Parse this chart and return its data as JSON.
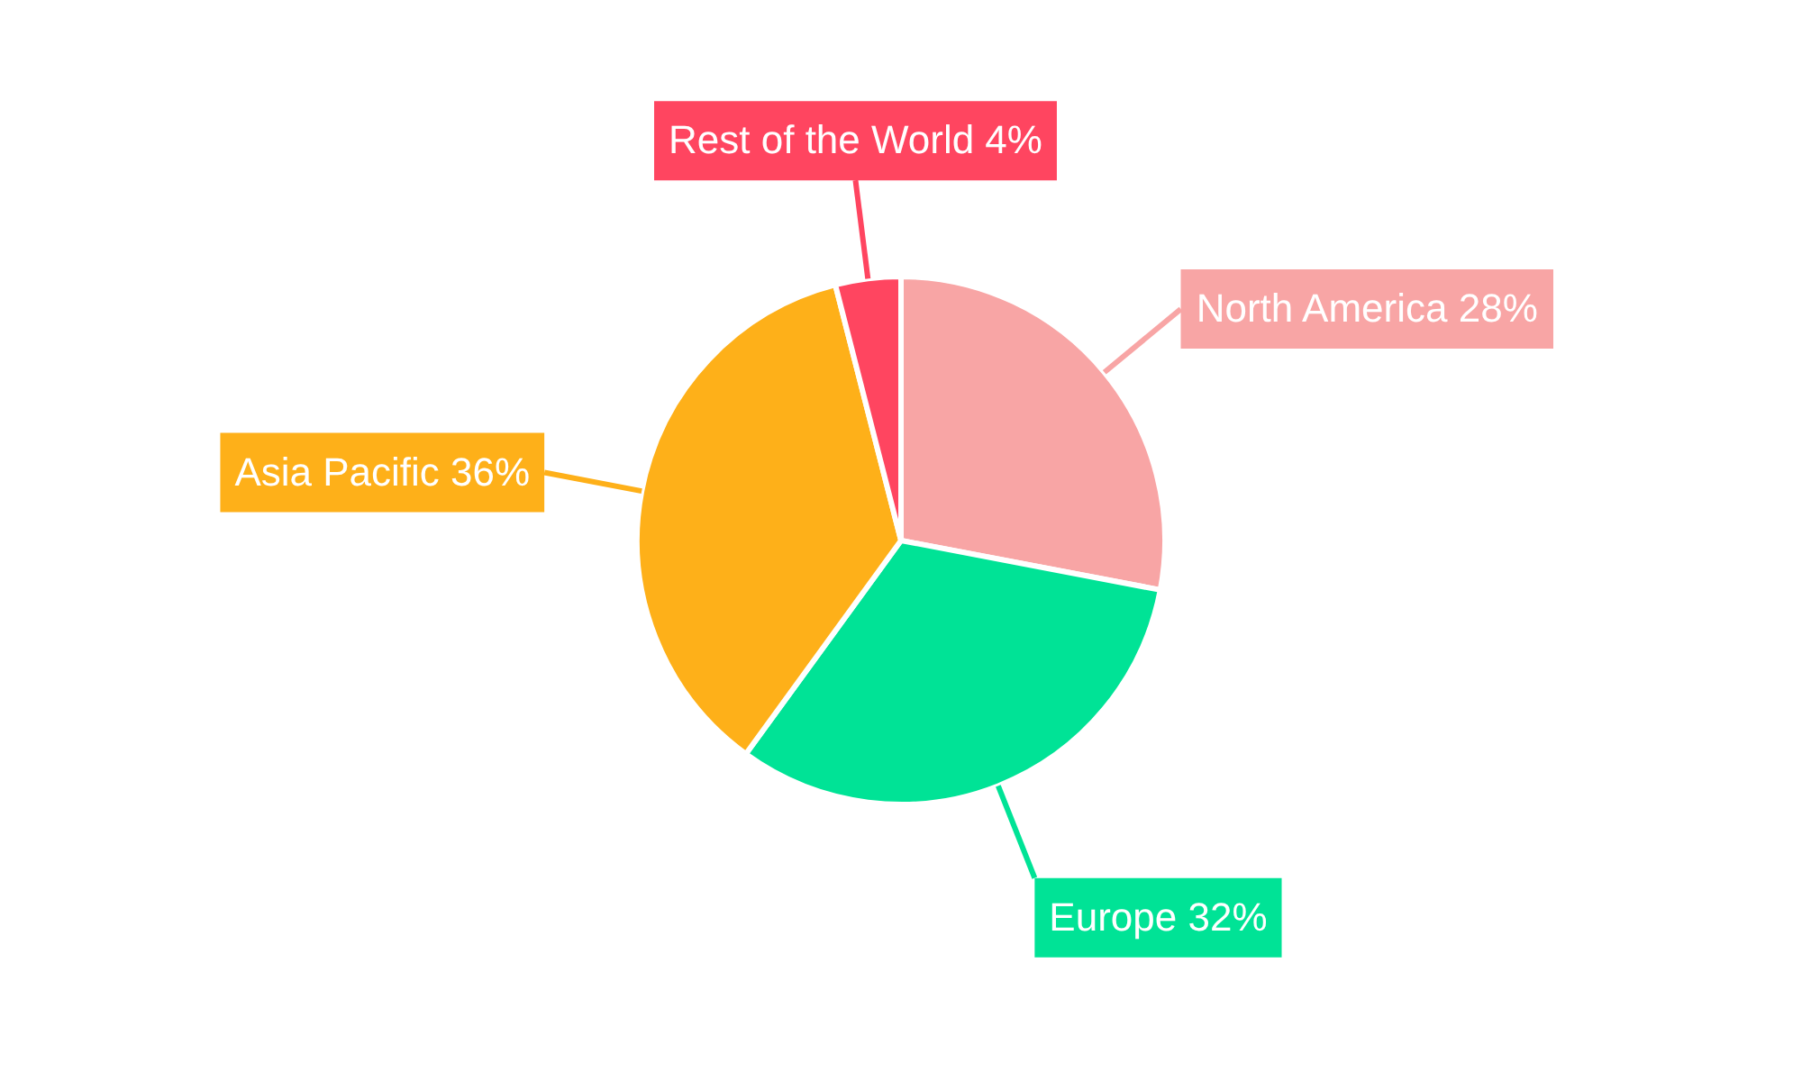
{
  "chart_data": {
    "type": "pie",
    "categories": [
      "North America",
      "Europe",
      "Asia Pacific",
      "Rest of the World"
    ],
    "values": [
      28,
      32,
      36,
      4
    ],
    "value_labels": [
      "28%",
      "32%",
      "36%",
      "4%"
    ],
    "colors": [
      "#f8a5a5",
      "#00e396",
      "#feb019",
      "#ff4560"
    ],
    "legend": false
  }
}
